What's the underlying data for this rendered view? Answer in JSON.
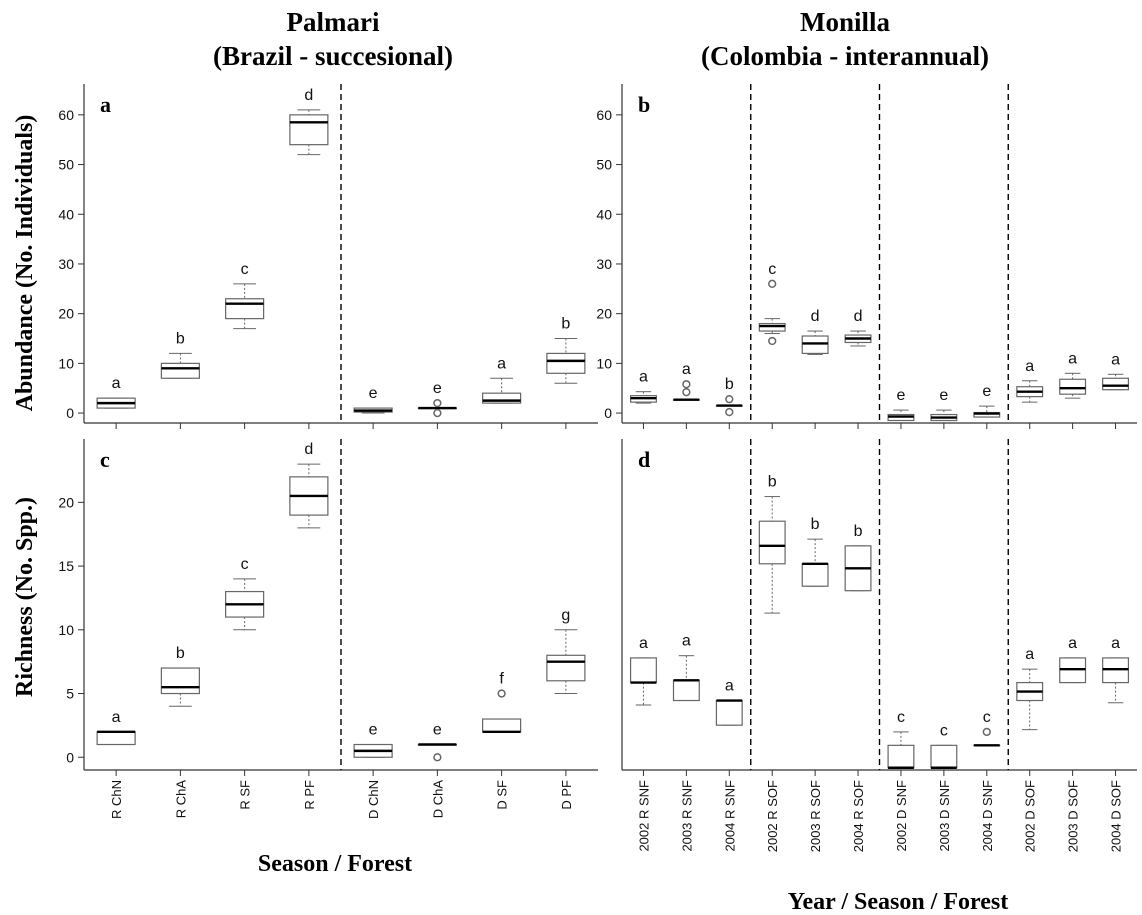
{
  "titles": {
    "palmari_line1": "Palmari",
    "palmari_line2": "(Brazil - succesional)",
    "monilla_line1": "Monilla",
    "monilla_line2": "(Colombia - interannual)"
  },
  "axis_titles": {
    "y_top": "Abundance (No. Individuals)",
    "y_bottom": "Richness (No. Spp.)",
    "x_left": "Season / Forest",
    "x_right": "Year / Season / Forest"
  },
  "colors": {
    "box_edge": "#666666",
    "median": "#000000",
    "separator": "#000000",
    "axis": "#333333"
  },
  "chart_data": [
    {
      "id": "a",
      "letter": "a",
      "type": "box",
      "categories": [
        "R ChN",
        "R ChA",
        "R SF",
        "R PF",
        "D ChN",
        "D ChA",
        "D SF",
        "D PF"
      ],
      "boxes": [
        {
          "min": 1,
          "q1": 1,
          "median": 2,
          "q3": 3,
          "max": 3,
          "outliers": []
        },
        {
          "min": 7,
          "q1": 7,
          "median": 9,
          "q3": 10,
          "max": 12,
          "outliers": []
        },
        {
          "min": 17,
          "q1": 19,
          "median": 22,
          "q3": 23,
          "max": 26,
          "outliers": []
        },
        {
          "min": 52,
          "q1": 54,
          "median": 58.5,
          "q3": 60,
          "max": 61,
          "outliers": []
        },
        {
          "min": 0,
          "q1": 0.2,
          "median": 0.5,
          "q3": 1,
          "max": 1,
          "outliers": []
        },
        {
          "min": 1,
          "q1": 1,
          "median": 1,
          "q3": 1,
          "max": 1,
          "outliers": [
            0,
            2
          ]
        },
        {
          "min": 2,
          "q1": 2,
          "median": 2.5,
          "q3": 4,
          "max": 7,
          "outliers": []
        },
        {
          "min": 6,
          "q1": 8,
          "median": 10.5,
          "q3": 12,
          "max": 15,
          "outliers": []
        }
      ],
      "letters": [
        "a",
        "b",
        "c",
        "d",
        "e",
        "e",
        "a",
        "b"
      ],
      "ylim": [
        -2,
        65
      ],
      "yticks": [
        0,
        10,
        20,
        30,
        40,
        50,
        60
      ],
      "separators_after": [
        4
      ]
    },
    {
      "id": "b",
      "letter": "b",
      "type": "box",
      "categories": [
        "2002 R SNF",
        "2003 R SNF",
        "2004 R SNF",
        "2002 R SOF",
        "2003 R SOF",
        "2004 R SOF",
        "2002 D SNF",
        "2003 D SNF",
        "2004 D SNF",
        "2002 D SOF",
        "2003 D SOF",
        "2004 D SOF"
      ],
      "boxes": [
        {
          "min": 2,
          "q1": 2.2,
          "median": 3,
          "q3": 3.5,
          "max": 4.3,
          "outliers": []
        },
        {
          "min": 2.7,
          "q1": 2.7,
          "median": 2.7,
          "q3": 2.7,
          "max": 2.7,
          "outliers": [
            4.2,
            5.8
          ]
        },
        {
          "min": 1.5,
          "q1": 1.5,
          "median": 1.5,
          "q3": 1.5,
          "max": 1.5,
          "outliers": [
            0.2,
            2.8
          ]
        },
        {
          "min": 16,
          "q1": 16.5,
          "median": 17.5,
          "q3": 18,
          "max": 19,
          "outliers": [
            14.5,
            26
          ]
        },
        {
          "min": 11.8,
          "q1": 12,
          "median": 14,
          "q3": 15.5,
          "max": 16.5,
          "outliers": []
        },
        {
          "min": 13.5,
          "q1": 14.2,
          "median": 15,
          "q3": 15.7,
          "max": 16.5,
          "outliers": []
        },
        {
          "min": -1.5,
          "q1": -1.5,
          "median": -0.7,
          "q3": -0.3,
          "max": 0.6,
          "outliers": []
        },
        {
          "min": -1.5,
          "q1": -1.5,
          "median": -0.9,
          "q3": -0.3,
          "max": 0.6,
          "outliers": []
        },
        {
          "min": -0.8,
          "q1": -0.8,
          "median": -0.1,
          "q3": 0.1,
          "max": 1.4,
          "outliers": []
        },
        {
          "min": 2.2,
          "q1": 3.3,
          "median": 4.3,
          "q3": 5.3,
          "max": 6.5,
          "outliers": []
        },
        {
          "min": 3,
          "q1": 3.8,
          "median": 5,
          "q3": 6.8,
          "max": 8,
          "outliers": []
        },
        {
          "min": 4.7,
          "q1": 4.7,
          "median": 5.5,
          "q3": 7,
          "max": 7.8,
          "outliers": []
        }
      ],
      "letters": [
        "a",
        "a",
        "b",
        "c",
        "d",
        "d",
        "e",
        "e",
        "e",
        "a",
        "a",
        "a"
      ],
      "ylim": [
        -2,
        65
      ],
      "yticks": [
        0,
        10,
        20,
        30,
        40,
        50,
        60
      ],
      "separators_after": [
        3,
        6,
        9
      ]
    },
    {
      "id": "c",
      "letter": "c",
      "type": "box",
      "categories": [
        "R ChN",
        "R ChA",
        "R SF",
        "R PF",
        "D ChN",
        "D ChA",
        "D SF",
        "D PF"
      ],
      "boxes": [
        {
          "min": 1,
          "q1": 1,
          "median": 2,
          "q3": 2,
          "max": 2,
          "outliers": []
        },
        {
          "min": 4,
          "q1": 5,
          "median": 5.5,
          "q3": 7,
          "max": 7,
          "outliers": []
        },
        {
          "min": 10,
          "q1": 11,
          "median": 12,
          "q3": 13,
          "max": 14,
          "outliers": []
        },
        {
          "min": 18,
          "q1": 19,
          "median": 20.5,
          "q3": 22,
          "max": 23,
          "outliers": []
        },
        {
          "min": 0,
          "q1": 0,
          "median": 0.5,
          "q3": 1,
          "max": 1,
          "outliers": []
        },
        {
          "min": 1,
          "q1": 1,
          "median": 1,
          "q3": 1,
          "max": 1,
          "outliers": [
            0
          ]
        },
        {
          "min": 2,
          "q1": 2,
          "median": 2,
          "q3": 3,
          "max": 3,
          "outliers": [
            5
          ]
        },
        {
          "min": 5,
          "q1": 6,
          "median": 7.5,
          "q3": 8,
          "max": 10,
          "outliers": []
        }
      ],
      "letters": [
        "a",
        "b",
        "c",
        "d",
        "e",
        "e",
        "f",
        "g"
      ],
      "ylim": [
        -1,
        24.5
      ],
      "yticks": [
        0,
        5,
        10,
        15,
        20
      ],
      "separators_after": [
        4
      ]
    },
    {
      "id": "d",
      "letter": "d",
      "type": "box",
      "categories": [
        "2002 R SNF",
        "2003 R SNF",
        "2004 R SNF",
        "2002 R SOF",
        "2003 R SOF",
        "2004 R SOF",
        "2002 D SNF",
        "2003 D SNF",
        "2004 D SNF",
        "2002 D SOF",
        "2003 D SOF",
        "2004 D SOF"
      ],
      "boxes": [
        {
          "min": 2.7,
          "q1": 3.7,
          "median": 3.7,
          "q3": 4.8,
          "max": 4.8,
          "outliers": []
        },
        {
          "min": 2.9,
          "q1": 2.9,
          "median": 3.8,
          "q3": 3.8,
          "max": 4.9,
          "outliers": []
        },
        {
          "min": 1.8,
          "q1": 1.8,
          "median": 2.9,
          "q3": 2.9,
          "max": 2.9,
          "outliers": []
        },
        {
          "min": 6.8,
          "q1": 9.0,
          "median": 9.8,
          "q3": 10.9,
          "max": 12.0,
          "outliers": []
        },
        {
          "min": 8.0,
          "q1": 8.0,
          "median": 9.0,
          "q3": 9.0,
          "max": 10.1,
          "outliers": []
        },
        {
          "min": 7.8,
          "q1": 7.8,
          "median": 8.8,
          "q3": 9.8,
          "max": 9.8,
          "outliers": []
        },
        {
          "min": -0.1,
          "q1": -0.1,
          "median": -0.1,
          "q3": 0.9,
          "max": 1.5,
          "outliers": []
        },
        {
          "min": -0.1,
          "q1": -0.1,
          "median": -0.1,
          "q3": 0.9,
          "max": 0.9,
          "outliers": []
        },
        {
          "min": 0.9,
          "q1": 0.9,
          "median": 0.9,
          "q3": 0.9,
          "max": 0.9,
          "outliers": [
            1.5
          ]
        },
        {
          "min": 1.6,
          "q1": 2.9,
          "median": 3.3,
          "q3": 3.7,
          "max": 4.3,
          "outliers": []
        },
        {
          "min": 3.7,
          "q1": 3.7,
          "median": 4.3,
          "q3": 4.8,
          "max": 4.8,
          "outliers": []
        },
        {
          "min": 2.8,
          "q1": 3.7,
          "median": 4.3,
          "q3": 4.8,
          "max": 4.8,
          "outliers": []
        }
      ],
      "letters": [
        "a",
        "a",
        "a",
        "b",
        "b",
        "b",
        "c",
        "c",
        "c",
        "a",
        "a",
        "a"
      ],
      "ylim": [
        -0.2,
        14.3
      ],
      "yticks": [],
      "separators_after": [
        3,
        6,
        9
      ]
    }
  ]
}
